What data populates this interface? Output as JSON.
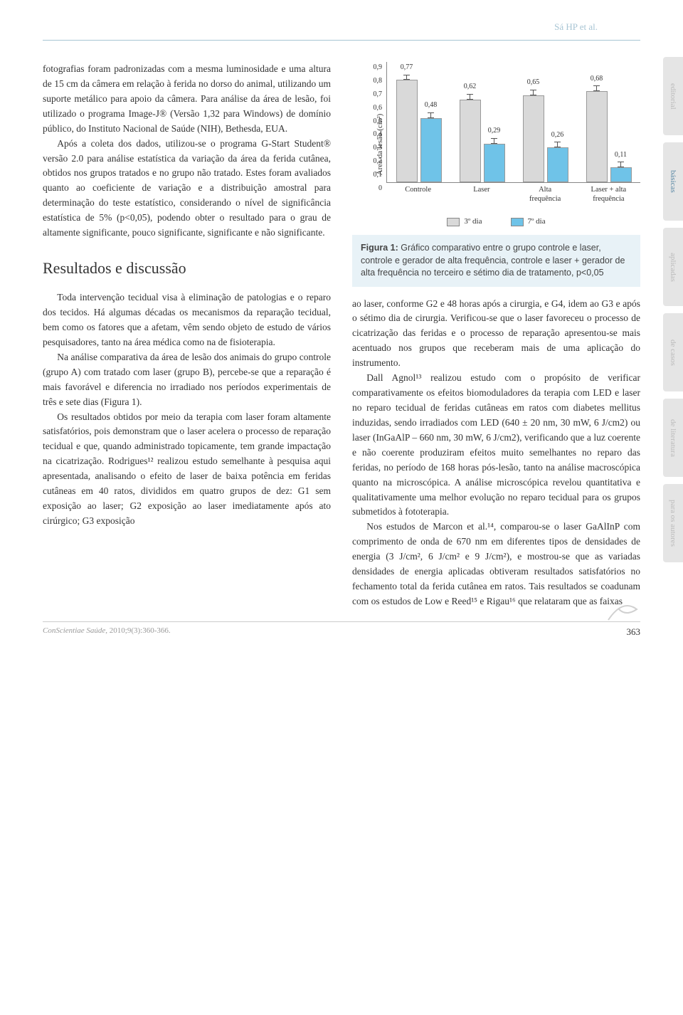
{
  "header_author": "Sá HP et al.",
  "left_column": {
    "p1": "fotografias foram padronizadas com a mesma luminosidade e uma altura de 15 cm da câmera em relação à ferida no dorso do animal, utilizando um suporte metálico para apoio da câmera. Para análise da área de lesão, foi utilizado o programa Image-J® (Versão 1,32 para Windows) de domínio público, do Instituto Nacional de Saúde (NIH), Bethesda, EUA.",
    "p2": "Após a coleta dos dados, utilizou-se o programa G-Start Student® versão 2.0 para análise estatística da variação da área da ferida cutânea, obtidos nos grupos tratados e no grupo não tratado. Estes foram avaliados quanto ao coeficiente de variação e a distribuição amostral para determinação do teste estatístico, considerando o nível de significância estatística de 5% (p<0,05), podendo obter o resultado para o grau de altamente significante, pouco significante, significante e não significante.",
    "section_title": "Resultados e discussão",
    "p3": "Toda intervenção tecidual visa à eliminação de patologias e o reparo dos tecidos. Há algumas décadas os mecanismos da reparação tecidual, bem como os fatores que a afetam, vêm sendo objeto de estudo de vários pesquisadores, tanto na área médica como na de fisioterapia.",
    "p4": "Na análise comparativa da área de lesão dos animais do grupo controle (grupo A) com tratado com laser (grupo B), percebe-se que a reparação é mais favorável e diferencia no irradiado nos períodos experimentais de três e sete dias (Figura 1).",
    "p5": "Os resultados obtidos por meio da terapia com laser foram altamente satisfatórios, pois demonstram que o laser acelera o processo de reparação tecidual e que, quando administrado topicamente, tem grande impactação na cicatrização. Rodrigues¹² realizou estudo semelhante à pesquisa aqui apresentada, analisando o efeito de laser de baixa potência em feridas cutâneas em 40 ratos, divididos em quatro grupos de dez: G1 sem exposição ao laser; G2 exposição ao laser imediatamente após ato cirúrgico; G3 exposição"
  },
  "right_column": {
    "p1": "ao laser, conforme G2 e 48 horas após a cirurgia, e G4, idem ao G3 e após o sétimo dia de cirurgia. Verificou-se que o laser favoreceu o processo de cicatrização das feridas e o processo de reparação apresentou-se mais acentuado nos grupos que receberam mais de uma aplicação do instrumento.",
    "p2": "Dall Agnol¹³ realizou estudo com o propósito de verificar comparativamente os efeitos biomoduladores da terapia com LED e laser no reparo tecidual de feridas cutâneas em ratos com diabetes mellitus induzidas, sendo irradiados com LED (640 ± 20 nm, 30 mW, 6 J/cm2) ou laser (InGaAlP – 660 nm, 30 mW, 6 J/cm2), verificando que a luz coerente e não coerente produziram efeitos muito semelhantes no reparo das feridas, no período de 168 horas pós-lesão, tanto na análise macroscópica quanto na microscópica. A análise microscópica revelou quantitativa e qualitativamente uma melhor evolução no reparo tecidual para os grupos submetidos à fototerapia.",
    "p3": "Nos estudos de Marcon et al.¹⁴, comparou-se o laser GaAlInP com comprimento de onda de 670 nm em diferentes tipos de densidades de energia (3 J/cm², 6 J/cm² e 9 J/cm²), e mostrou-se que as variadas densidades de energia aplicadas obtiveram resultados satisfatórios no fechamento total da ferida cutânea em ratos. Tais resultados se coadunam com os estudos de Low e Reed¹⁵ e Rigau¹⁶ que relataram que as faixas"
  },
  "chart": {
    "type": "bar",
    "yaxis_label": "Área da lesão (cm²)",
    "ymax": 0.9,
    "ystep": 0.1,
    "yticks": [
      "0,9",
      "0,8",
      "0,7",
      "0,6",
      "0,5",
      "0,4",
      "0,3",
      "0,2",
      "0,1",
      "0"
    ],
    "categories": [
      "Controle",
      "Laser",
      "Alta\nfrequência",
      "Laser + alta\nfrequência"
    ],
    "series": [
      {
        "name": "3º dia",
        "color": "#d9d9d9",
        "values": [
          0.77,
          0.62,
          0.65,
          0.68
        ],
        "labels": [
          "0,77",
          "0,62",
          "0,65",
          "0,68"
        ]
      },
      {
        "name": "7º dia",
        "color": "#6fc3e8",
        "values": [
          0.48,
          0.29,
          0.26,
          0.11
        ],
        "labels": [
          "0,48",
          "0,29",
          "0,26",
          "0,11"
        ]
      }
    ],
    "legend_labels": [
      "3º dia",
      "7º dia"
    ],
    "caption_bold": "Figura 1:",
    "caption": " Gráfico comparativo entre o grupo controle e laser, controle e gerador de alta frequência, controle e laser + gerador de alta frequência no terceiro e sétimo dia de tratamento, p<0,05"
  },
  "side_tabs": [
    "editorial",
    "básicas",
    "aplicadas",
    "de casos",
    "de literatura",
    "para os autores"
  ],
  "active_tab": "básicas",
  "footer": {
    "journal": "ConScientiae Saúde",
    "ref": ", 2010;9(3):360-366.",
    "page": "363"
  }
}
